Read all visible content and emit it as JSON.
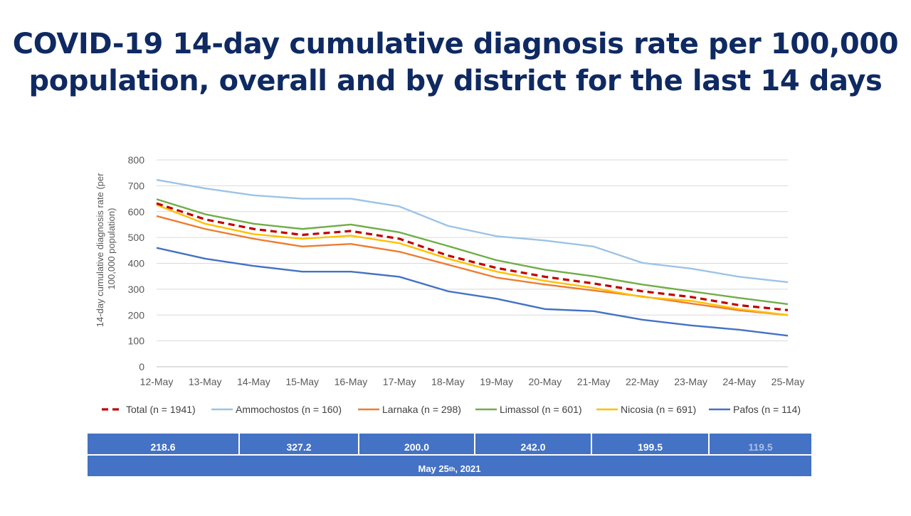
{
  "title_lines": [
    "COVID-19 14-day cumulative diagnosis rate per 100,000",
    "population, overall and by district for the last 14 days"
  ],
  "chart_data": {
    "type": "line",
    "title": "",
    "xlabel": "",
    "ylabel": "14-day cumulative diagnosis rate (per 100,000 population)",
    "ylabel_lines": [
      "14-day cumulative diagnosis rate (per",
      "100,000 population)"
    ],
    "ylim": [
      0,
      800
    ],
    "yticks": [
      0,
      100,
      200,
      300,
      400,
      500,
      600,
      700,
      800
    ],
    "ytick_labels": [
      "0",
      "100",
      "200",
      "300",
      "400",
      "500",
      "600",
      "700",
      "800"
    ],
    "grid": true,
    "legend_position": "bottom",
    "categories": [
      "12-May",
      "13-May",
      "14-May",
      "15-May",
      "16-May",
      "17-May",
      "18-May",
      "19-May",
      "20-May",
      "21-May",
      "22-May",
      "23-May",
      "24-May",
      "25-May"
    ],
    "series": [
      {
        "name": "Ammochostos (n = 160)",
        "color": "#9dc3e6",
        "dashed": false,
        "values": [
          723,
          690,
          663,
          650,
          650,
          620,
          545,
          505,
          488,
          465,
          402,
          380,
          348,
          327
        ]
      },
      {
        "name": "Larnaka (n = 298)",
        "color": "#ed7d31",
        "dashed": false,
        "values": [
          583,
          533,
          495,
          465,
          475,
          445,
          395,
          345,
          318,
          295,
          272,
          245,
          218,
          200
        ]
      },
      {
        "name": "Limassol (n = 601)",
        "color": "#70ad47",
        "dashed": false,
        "values": [
          648,
          590,
          553,
          533,
          550,
          520,
          467,
          412,
          375,
          350,
          318,
          292,
          266,
          242
        ]
      },
      {
        "name": "Nicosia (n = 691)",
        "color": "#ffc000",
        "dashed": false,
        "values": [
          626,
          553,
          513,
          495,
          507,
          478,
          418,
          368,
          332,
          305,
          270,
          255,
          223,
          200
        ]
      },
      {
        "name": "Pafos (n = 114)",
        "color": "#4472c4",
        "dashed": false,
        "values": [
          460,
          418,
          390,
          368,
          368,
          348,
          292,
          263,
          223,
          215,
          182,
          160,
          143,
          120
        ]
      },
      {
        "name": "Total (n = 1941)",
        "color": "#c00000",
        "dashed": true,
        "values": [
          632,
          570,
          533,
          510,
          525,
          495,
          430,
          382,
          348,
          322,
          292,
          270,
          238,
          219
        ]
      }
    ],
    "legend_order": [
      "Total (n = 1941)",
      "Ammochostos (n = 160)",
      "Larnaka (n = 298)",
      "Limassol (n = 601)",
      "Nicosia (n = 691)",
      "Pafos (n = 114)"
    ]
  },
  "summary": {
    "values": [
      "218.6",
      "327.2",
      "200.0",
      "242.0",
      "199.5",
      "119.5"
    ],
    "date_label": "May 25",
    "date_suffix": "th",
    "date_year": ", 2021"
  }
}
